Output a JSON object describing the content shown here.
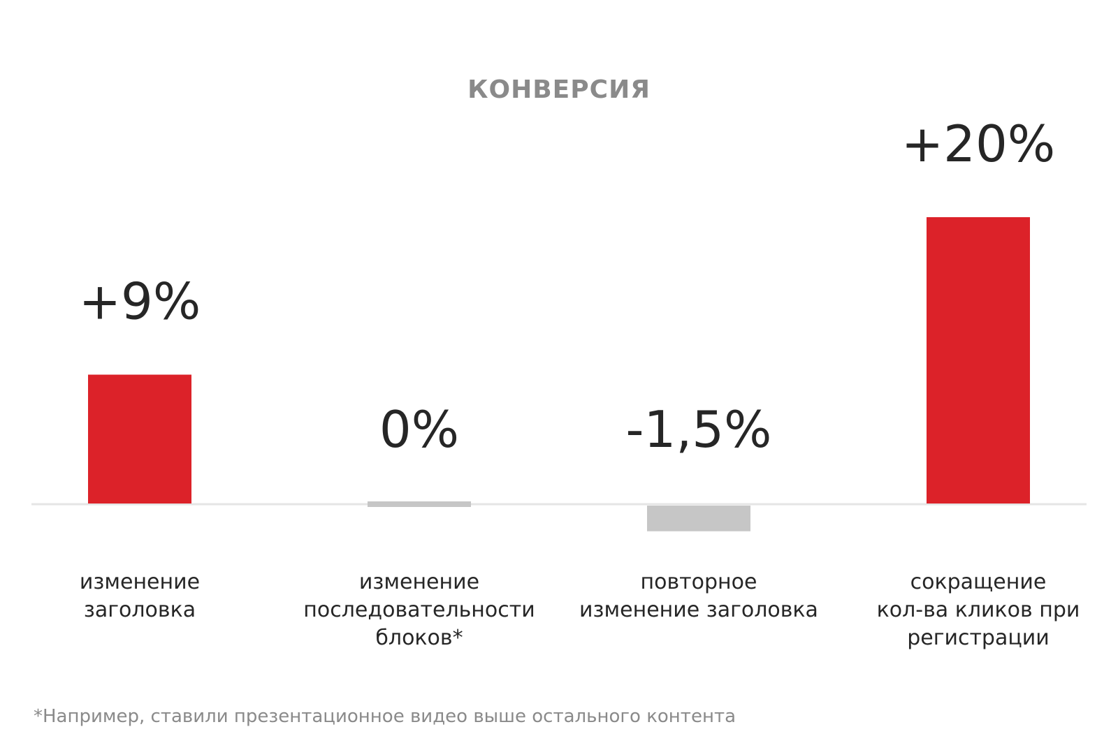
{
  "chart_data": {
    "type": "bar",
    "title": "КОНВЕРСИЯ",
    "categories": [
      [
        "изменение",
        "заголовка"
      ],
      [
        "изменение",
        "последовательности",
        "блоков*"
      ],
      [
        "повторное",
        "изменение заголовка"
      ],
      [
        "сокращение",
        "кол-ва кликов при",
        "регистрации"
      ]
    ],
    "values": [
      9,
      0,
      -1.5,
      20
    ],
    "value_labels": [
      "+9%",
      "0%",
      "-1,5%",
      "+20%"
    ],
    "colors": {
      "positive": "#dc2229",
      "non_positive": "#c6c6c6",
      "baseline": "#e5e5e5"
    },
    "xlabel": "",
    "ylabel": "",
    "ylim": [
      -1.5,
      20
    ],
    "grid": false,
    "legend": "none"
  },
  "footnote": "*Например, ставили презентационное видео выше остального контента"
}
